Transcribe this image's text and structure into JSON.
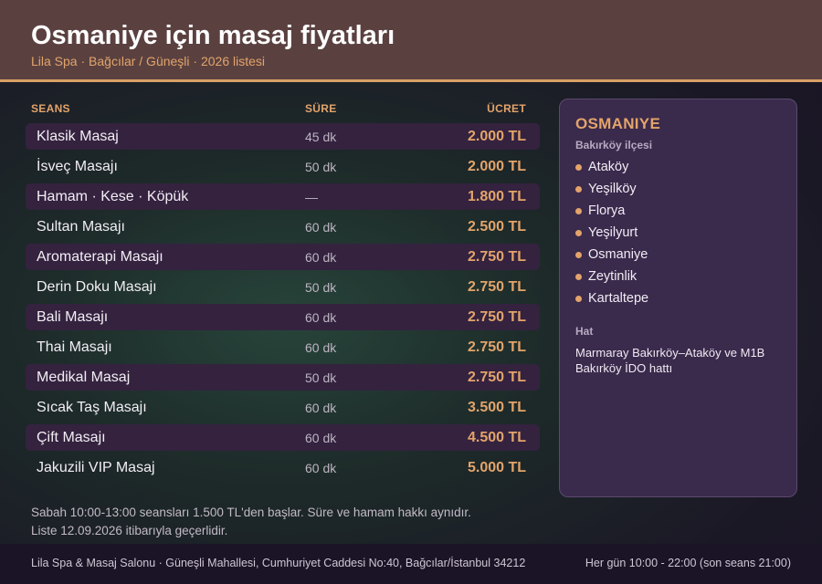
{
  "header": {
    "title": "Osmaniye için masaj fiyatları",
    "subtitle": "Lila Spa · Bağcılar / Güneşli · 2026 listesi"
  },
  "table": {
    "columns": {
      "name": "SEANS",
      "duration": "SÜRE",
      "price": "ÜCRET"
    },
    "rows": [
      {
        "name": "Klasik Masaj",
        "duration": "45 dk",
        "price": "2.000 TL"
      },
      {
        "name": "İsveç Masajı",
        "duration": "50 dk",
        "price": "2.000 TL"
      },
      {
        "name": "Hamam · Kese · Köpük",
        "duration": "—",
        "price": "1.800 TL"
      },
      {
        "name": "Sultan Masajı",
        "duration": "60 dk",
        "price": "2.500 TL"
      },
      {
        "name": "Aromaterapi Masajı",
        "duration": "60 dk",
        "price": "2.750 TL"
      },
      {
        "name": "Derin Doku Masajı",
        "duration": "50 dk",
        "price": "2.750 TL"
      },
      {
        "name": "Bali Masajı",
        "duration": "60 dk",
        "price": "2.750 TL"
      },
      {
        "name": "Thai Masajı",
        "duration": "60 dk",
        "price": "2.750 TL"
      },
      {
        "name": "Medikal Masaj",
        "duration": "50 dk",
        "price": "2.750 TL"
      },
      {
        "name": "Sıcak Taş Masajı",
        "duration": "60 dk",
        "price": "3.500 TL"
      },
      {
        "name": "Çift Masajı",
        "duration": "60 dk",
        "price": "4.500 TL"
      },
      {
        "name": "Jakuzili VIP Masaj",
        "duration": "60 dk",
        "price": "5.000 TL"
      }
    ]
  },
  "notes": {
    "line1": "Sabah 10:00-13:00 seansları 1.500 TL'den başlar. Süre ve hamam hakkı aynıdır.",
    "line2": "Liste 12.09.2026 itibarıyla geçerlidir."
  },
  "panel": {
    "title": "OSMANIYE",
    "subtitle": "Bakırköy ilçesi",
    "districts": [
      "Ataköy",
      "Yeşilköy",
      "Florya",
      "Yeşilyurt",
      "Osmaniye",
      "Zeytinlik",
      "Kartaltepe"
    ],
    "hat_title": "Hat",
    "hat_text": "Marmaray Bakırköy–Ataköy ve M1B Bakırköy İDO hattı"
  },
  "footer": {
    "address": "Lila Spa & Masaj Salonu · Güneşli Mahallesi, Cumhuriyet Caddesi No:40, Bağcılar/İstanbul 34212",
    "hours": "Her gün 10:00 - 22:00 (son seans 21:00)"
  },
  "colors": {
    "accent": "#e3a46a",
    "header_bg": "#5a4140",
    "panel_bg": "#3a2a4c",
    "row_highlight": "#34223f"
  }
}
